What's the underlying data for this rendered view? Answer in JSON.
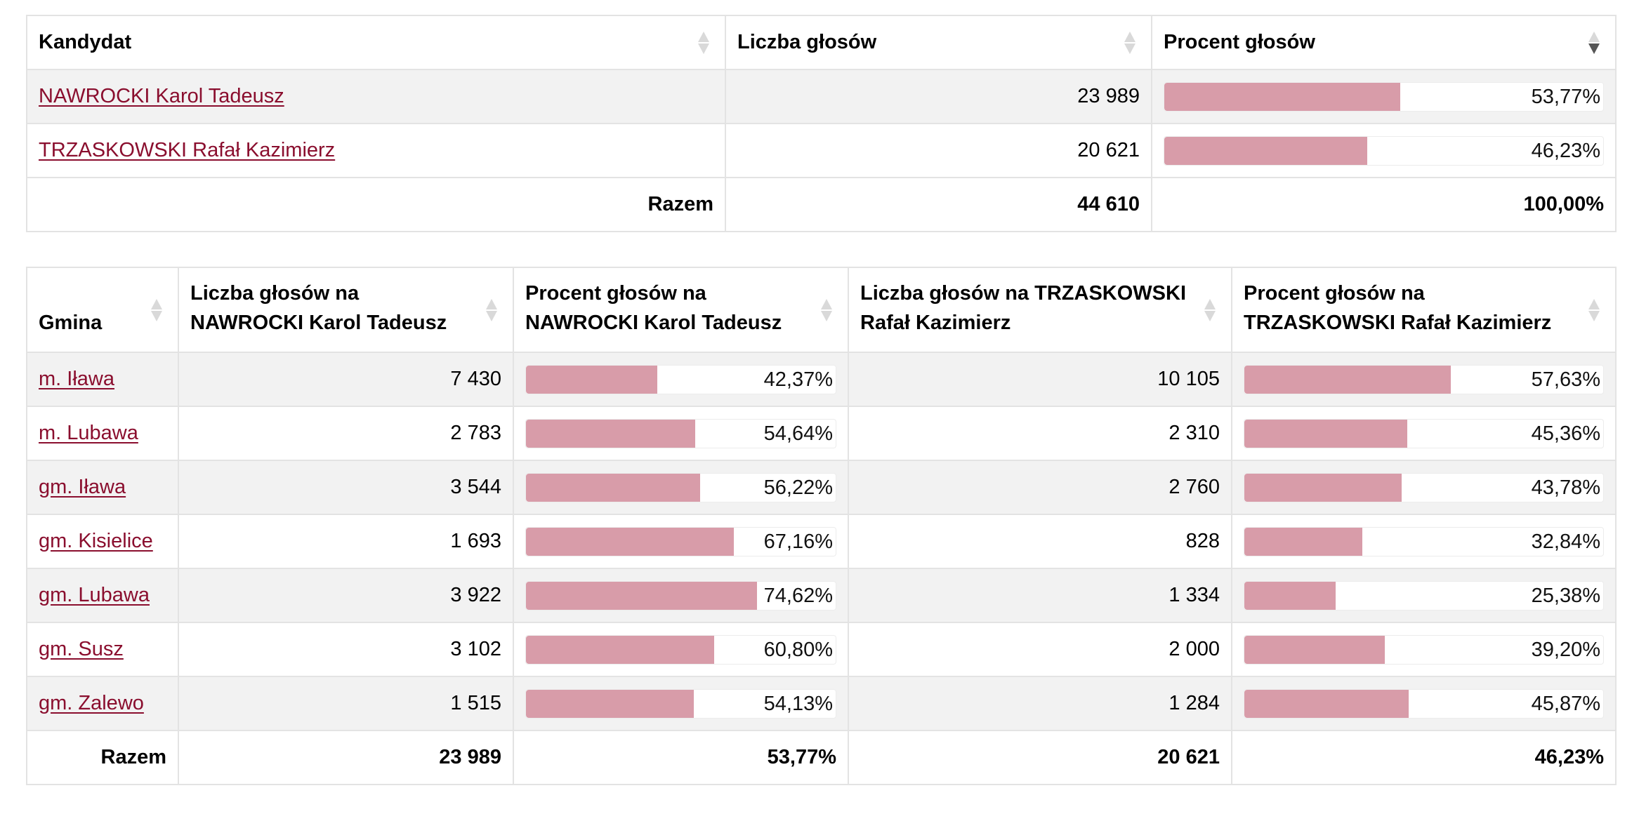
{
  "candidates_table": {
    "headers": {
      "candidate": "Kandydat",
      "votes": "Liczba głosów",
      "percent": "Procent głosów"
    },
    "rows": [
      {
        "name": "NAWROCKI Karol Tadeusz",
        "votes": "23 989",
        "percent_label": "53,77%",
        "percent": 53.77
      },
      {
        "name": "TRZASKOWSKI Rafał Kazimierz",
        "votes": "20 621",
        "percent_label": "46,23%",
        "percent": 46.23
      }
    ],
    "total": {
      "label": "Razem",
      "votes": "44 610",
      "percent_label": "100,00%"
    }
  },
  "municipality_table": {
    "headers": {
      "gmina": "Gmina",
      "votes_a": "Liczba głosów na NAWROCKI Karol Tadeusz",
      "percent_a": "Procent głosów na NAWROCKI Karol Tadeusz",
      "votes_b": "Liczba głosów na TRZASKOWSKI Rafał Kazimierz",
      "percent_b": "Procent głosów na TRZASKOWSKI Rafał Kazimierz"
    },
    "rows": [
      {
        "gmina": "m. Iława",
        "votes_a": "7 430",
        "percent_a_label": "42,37%",
        "percent_a": 42.37,
        "votes_b": "10 105",
        "percent_b_label": "57,63%",
        "percent_b": 57.63
      },
      {
        "gmina": "m. Lubawa",
        "votes_a": "2 783",
        "percent_a_label": "54,64%",
        "percent_a": 54.64,
        "votes_b": "2 310",
        "percent_b_label": "45,36%",
        "percent_b": 45.36
      },
      {
        "gmina": "gm. Iława",
        "votes_a": "3 544",
        "percent_a_label": "56,22%",
        "percent_a": 56.22,
        "votes_b": "2 760",
        "percent_b_label": "43,78%",
        "percent_b": 43.78
      },
      {
        "gmina": "gm. Kisielice",
        "votes_a": "1 693",
        "percent_a_label": "67,16%",
        "percent_a": 67.16,
        "votes_b": "828",
        "percent_b_label": "32,84%",
        "percent_b": 32.84
      },
      {
        "gmina": "gm. Lubawa",
        "votes_a": "3 922",
        "percent_a_label": "74,62%",
        "percent_a": 74.62,
        "votes_b": "1 334",
        "percent_b_label": "25,38%",
        "percent_b": 25.38
      },
      {
        "gmina": "gm. Susz",
        "votes_a": "3 102",
        "percent_a_label": "60,80%",
        "percent_a": 60.8,
        "votes_b": "2 000",
        "percent_b_label": "39,20%",
        "percent_b": 39.2
      },
      {
        "gmina": "gm. Zalewo",
        "votes_a": "1 515",
        "percent_a_label": "54,13%",
        "percent_a": 54.13,
        "votes_b": "1 284",
        "percent_b_label": "45,87%",
        "percent_b": 45.87
      }
    ],
    "total": {
      "label": "Razem",
      "votes_a": "23 989",
      "percent_a_label": "53,77%",
      "votes_b": "20 621",
      "percent_b_label": "46,23%"
    }
  },
  "colors": {
    "bar_fill": "#d89ca9",
    "link": "#8a0e2e",
    "stripe": "#f2f2f2"
  },
  "icons": {
    "sort": "sort-both-icon",
    "sort_active": "sort-descending-icon"
  }
}
